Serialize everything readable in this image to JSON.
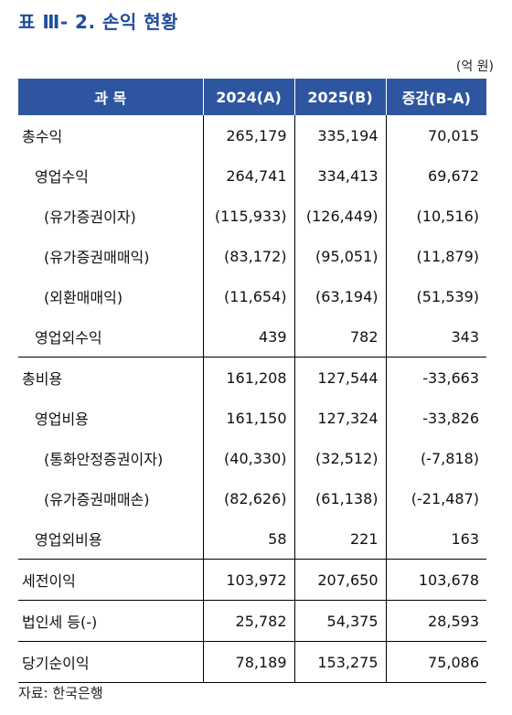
{
  "title": "표 Ⅲ- 2. 손익 현황",
  "unit": "(억 원)",
  "table": {
    "headers": [
      "과 목",
      "2024(A)",
      "2025(B)",
      "증감(B-A)"
    ],
    "rows": [
      {
        "label": "총수익",
        "v2024": "265,179",
        "v2025": "335,194",
        "diff": "70,015"
      },
      {
        "label": "영업수익",
        "v2024": "264,741",
        "v2025": "334,413",
        "diff": "69,672"
      },
      {
        "label": "(유가증권이자)",
        "v2024": "(115,933)",
        "v2025": "(126,449)",
        "diff": "(10,516)"
      },
      {
        "label": "(유가증권매매익)",
        "v2024": "(83,172)",
        "v2025": "(95,051)",
        "diff": "(11,879)"
      },
      {
        "label": "(외환매매익)",
        "v2024": "(11,654)",
        "v2025": "(63,194)",
        "diff": "(51,539)"
      },
      {
        "label": "영업외수익",
        "v2024": "439",
        "v2025": "782",
        "diff": "343"
      },
      {
        "label": "총비용",
        "v2024": "161,208",
        "v2025": "127,544",
        "diff": "-33,663"
      },
      {
        "label": "영업비용",
        "v2024": "161,150",
        "v2025": "127,324",
        "diff": "-33,826"
      },
      {
        "label": "(통화안정증권이자)",
        "v2024": "(40,330)",
        "v2025": "(32,512)",
        "diff": "(-7,818)"
      },
      {
        "label": "(유가증권매매손)",
        "v2024": "(82,626)",
        "v2025": "(61,138)",
        "diff": "(-21,487)"
      },
      {
        "label": "영업외비용",
        "v2024": "58",
        "v2025": "221",
        "diff": "163"
      },
      {
        "label": "세전이익",
        "v2024": "103,972",
        "v2025": "207,650",
        "diff": "103,678"
      },
      {
        "label": "법인세 등(-)",
        "v2024": "25,782",
        "v2025": "54,375",
        "diff": "28,593"
      },
      {
        "label": "당기순이익",
        "v2024": "78,189",
        "v2025": "153,275",
        "diff": "75,086"
      }
    ]
  },
  "source": "자료: 한국은행"
}
